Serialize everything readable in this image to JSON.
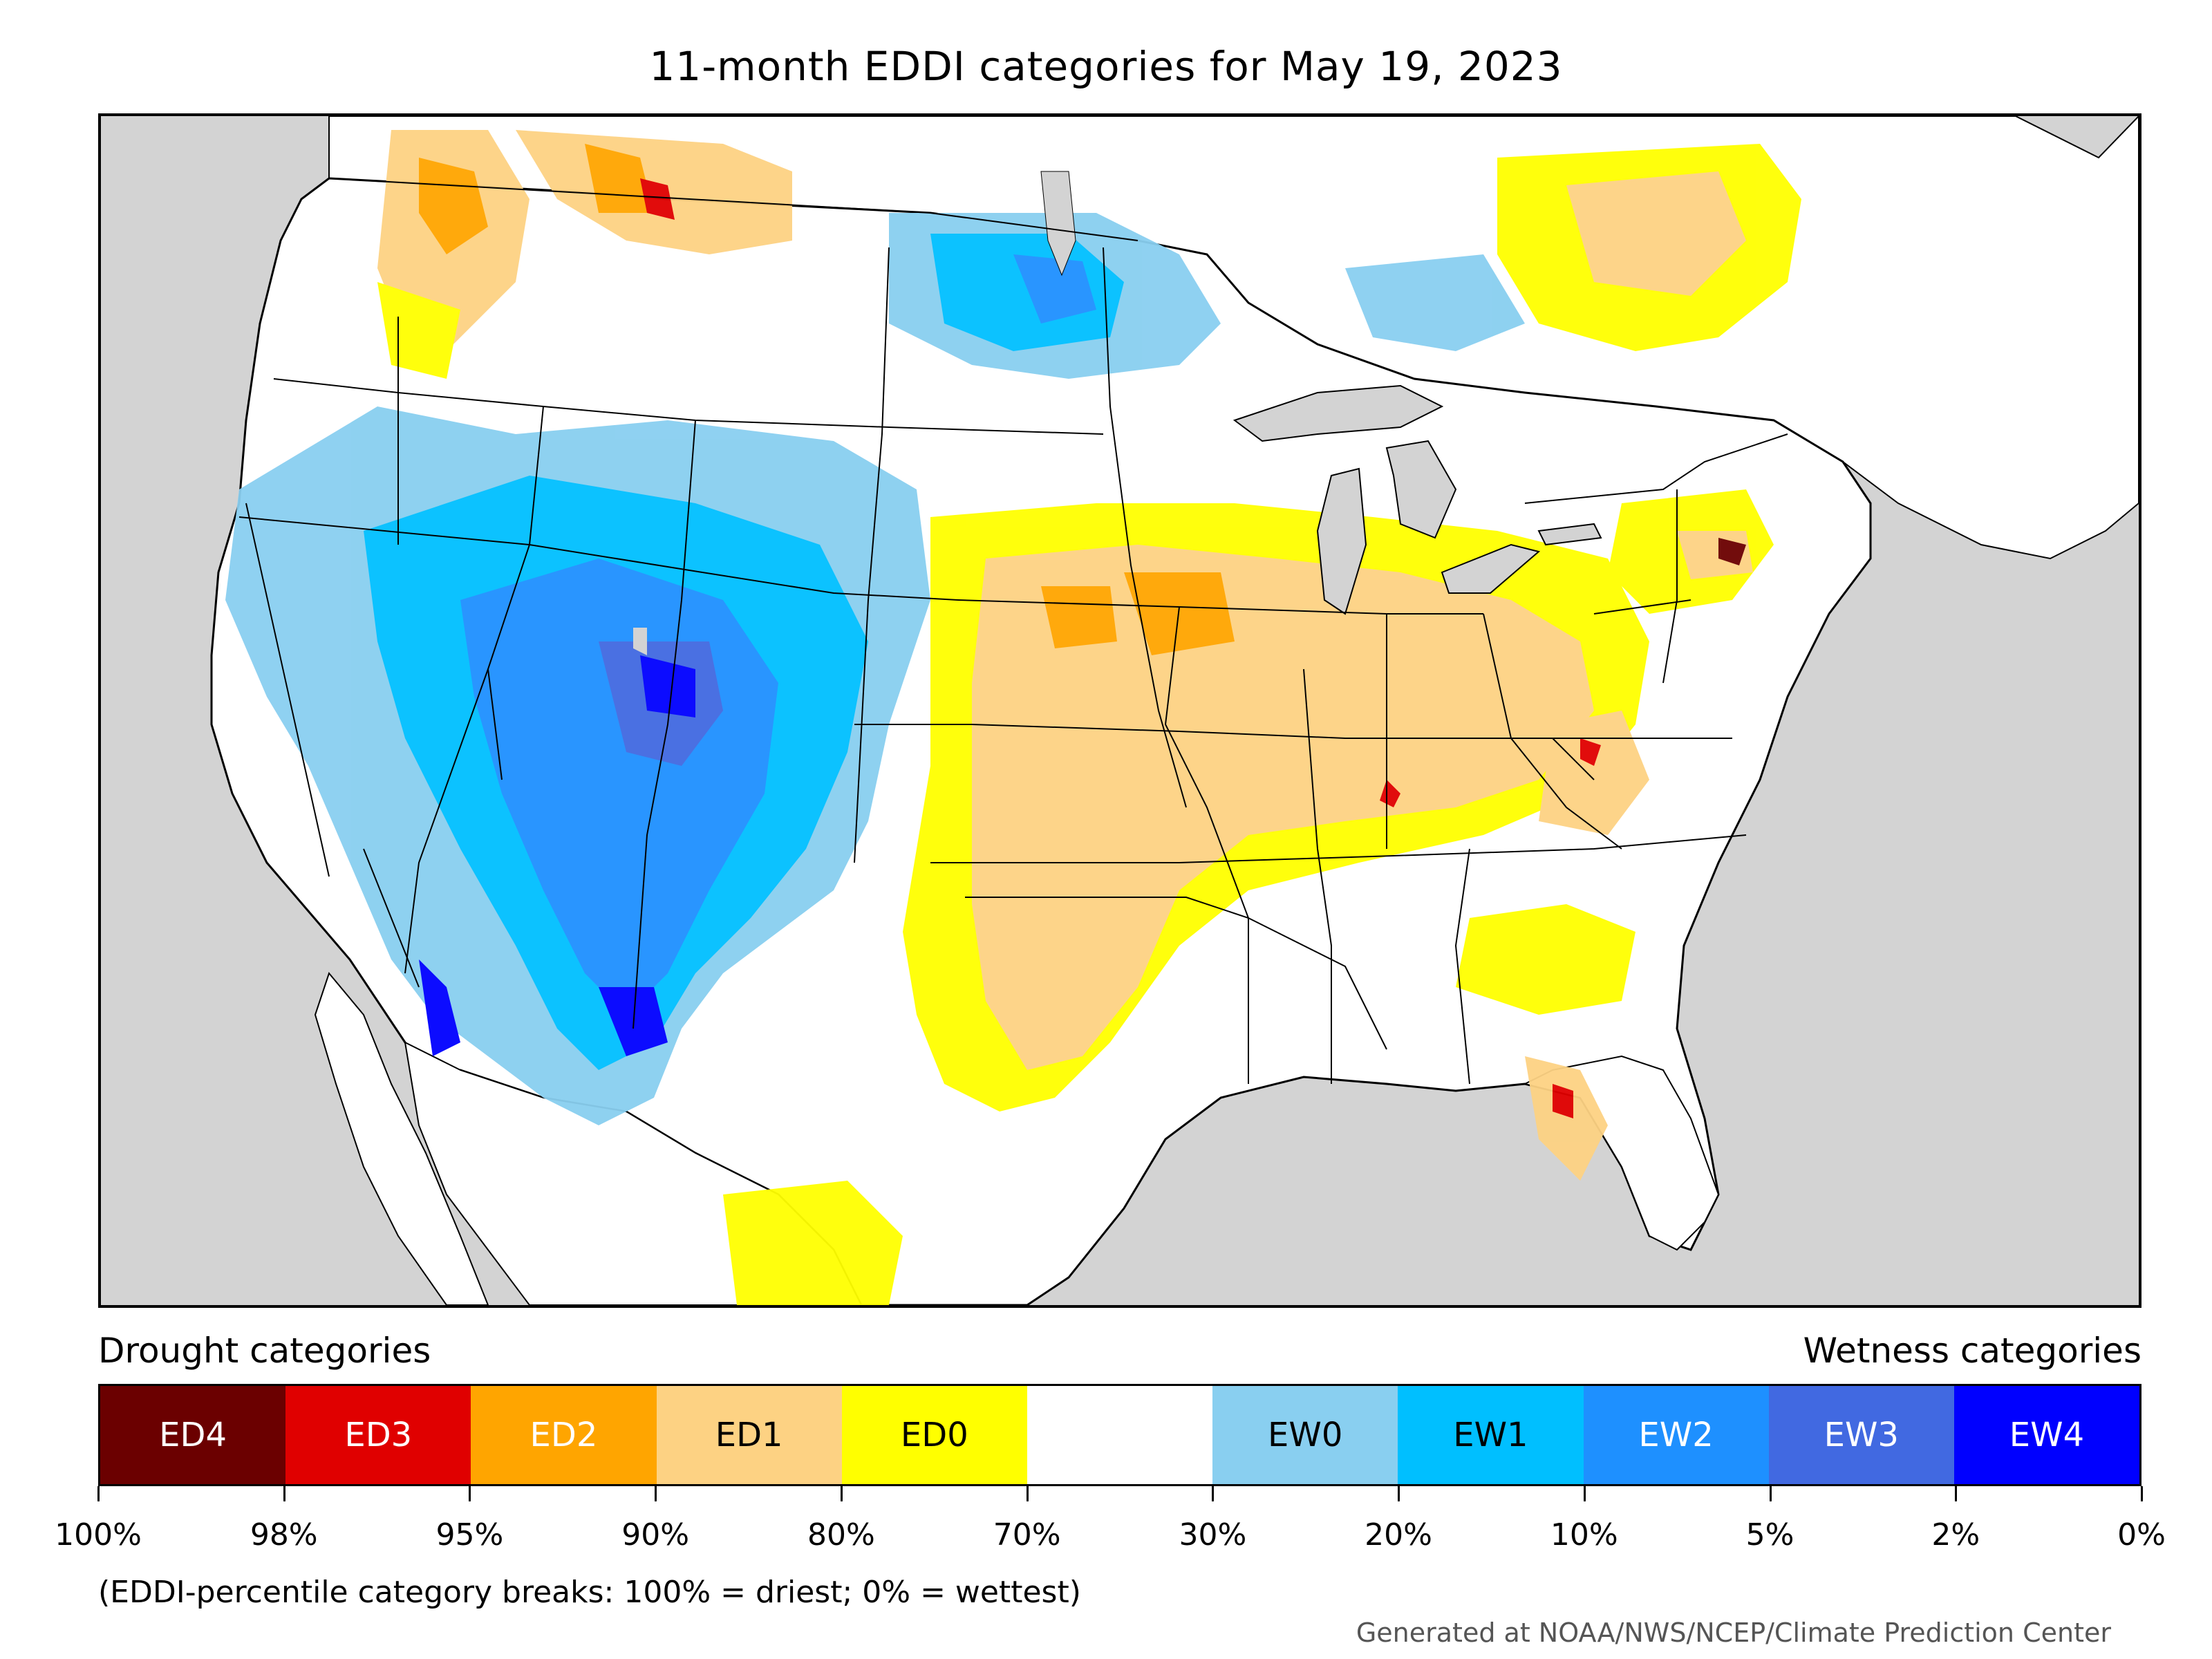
{
  "title": "11-month EDDI categories for May 19, 2023",
  "legend": {
    "drought_heading": "Drought categories",
    "wetness_heading": "Wetness categories",
    "categories": [
      {
        "label": "ED4",
        "color": "#6b0000",
        "text": "light"
      },
      {
        "label": "ED3",
        "color": "#e00000",
        "text": "light"
      },
      {
        "label": "ED2",
        "color": "#ffa500",
        "text": "light"
      },
      {
        "label": "ED1",
        "color": "#fdd283",
        "text": "dark"
      },
      {
        "label": "ED0",
        "color": "#ffff00",
        "text": "dark"
      },
      {
        "label": "",
        "color": "#ffffff",
        "text": "dark"
      },
      {
        "label": "EW0",
        "color": "#89cff0",
        "text": "dark"
      },
      {
        "label": "EW1",
        "color": "#00bfff",
        "text": "dark"
      },
      {
        "label": "EW2",
        "color": "#1e90ff",
        "text": "light"
      },
      {
        "label": "EW3",
        "color": "#4169e1",
        "text": "light"
      },
      {
        "label": "EW4",
        "color": "#0000ff",
        "text": "light"
      }
    ],
    "breaks": [
      "100%",
      "98%",
      "95%",
      "90%",
      "80%",
      "70%",
      "30%",
      "20%",
      "10%",
      "5%",
      "2%",
      "0%"
    ],
    "note": "(EDDI-percentile category breaks: 100% = driest; 0% = wettest)"
  },
  "credit": "Generated at NOAA/NWS/NCEP/Climate Prediction Center",
  "map": {
    "background_color": "#d3d3d3",
    "land_color": "#ffffff",
    "lake_color": "#d3d3d3",
    "border_color": "#000000"
  }
}
